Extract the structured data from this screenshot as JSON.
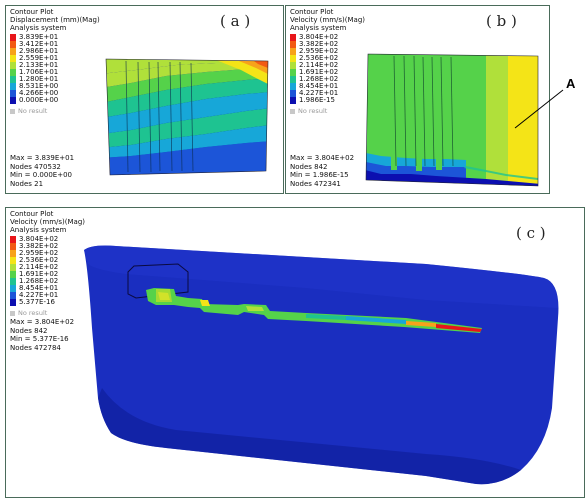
{
  "panels": {
    "a": {
      "title": "Contour Plot",
      "quantity": "Displacement (mm)(Mag)",
      "system": "Analysis system",
      "legend": [
        "3.839E+01",
        "3.412E+01",
        "2.986E+01",
        "2.559E+01",
        "2.133E+01",
        "1.706E+01",
        "1.280E+01",
        "8.531E+00",
        "4.266E+00",
        "0.000E+00"
      ],
      "no_result": "No result",
      "stats": [
        "Max = 3.839E+01",
        "Nodes 470532",
        "Min = 0.000E+00",
        "Nodes 21"
      ],
      "label": "( a )"
    },
    "b": {
      "title": "Contour Plot",
      "quantity": "Velocity (mm/s)(Mag)",
      "system": "Analysis system",
      "legend": [
        "3.804E+02",
        "3.382E+02",
        "2.959E+02",
        "2.536E+02",
        "2.114E+02",
        "1.691E+02",
        "1.268E+02",
        "8.454E+01",
        "4.227E+01",
        "1.986E-15"
      ],
      "no_result": "No result",
      "stats": [
        "Max = 3.804E+02",
        "Nodes 842",
        "Min = 1.986E-15",
        "Nodes 472341"
      ],
      "label": "( b )"
    },
    "c": {
      "title": "Contour Plot",
      "quantity": "Velocity (mm/s)(Mag)",
      "system": "Analysis system",
      "legend": [
        "3.804E+02",
        "3.382E+02",
        "2.959E+02",
        "2.536E+02",
        "2.114E+02",
        "1.691E+02",
        "1.268E+02",
        "8.454E+01",
        "4.227E+01",
        "5.377E-16"
      ],
      "no_result": "No result",
      "stats": [
        "Max = 3.804E+02",
        "Nodes 842",
        "Min = 5.377E-16",
        "Nodes 472784"
      ],
      "label": "( c )"
    }
  },
  "annotation": {
    "label": "A"
  },
  "colors": {
    "scale": [
      "#e8161a",
      "#f25a14",
      "#f7a21b",
      "#f4e417",
      "#b0e03a",
      "#55d24a",
      "#1ec391",
      "#17a7d8",
      "#1c55d8",
      "#0c0fb0"
    ],
    "background": "#ffffff",
    "model_blue": "#1a2ec0"
  }
}
